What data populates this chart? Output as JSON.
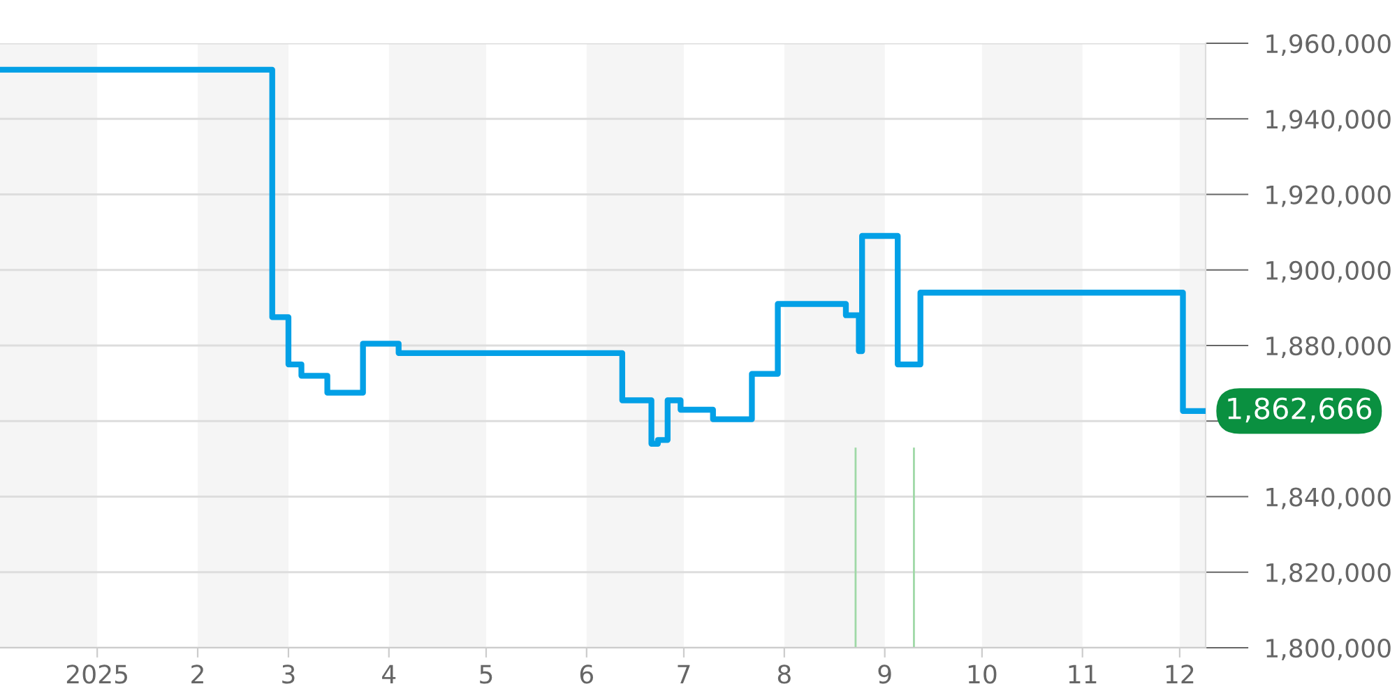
{
  "chart_data": {
    "type": "step",
    "series": [
      {
        "color": "#03a0e6",
        "x": [
          "2024-12-02",
          "2025-02-24",
          "2025-03-01",
          "2025-03-05",
          "2025-03-13",
          "2025-03-24",
          "2025-04-04",
          "2025-06-12",
          "2025-06-21",
          "2025-06-23",
          "2025-06-26",
          "2025-06-30",
          "2025-07-10",
          "2025-07-22",
          "2025-07-30",
          "2025-08-20",
          "2025-08-24",
          "2025-08-25",
          "2025-09-05",
          "2025-09-12",
          "2025-12-02",
          "2025-12-09"
        ],
        "values": [
          1953000,
          1887500,
          1875000,
          1872000,
          1867500,
          1880500,
          1878000,
          1865500,
          1854000,
          1855000,
          1865500,
          1863000,
          1860500,
          1872500,
          1891000,
          1888000,
          1878500,
          1909000,
          1875000,
          1894000,
          1862666,
          1862666
        ]
      },
      {
        "type": "bar",
        "color": "#9fd8a6",
        "x": [
          "2025-08-23",
          "2025-09-10"
        ],
        "base": [
          1800000,
          1800000
        ],
        "values": [
          53000,
          53000
        ]
      }
    ],
    "xlim": [
      "2024-12-02",
      "2025-12-09"
    ],
    "xticks": [
      {
        "value": "2025-01-01",
        "label": "2025"
      },
      {
        "value": "2025-02-01",
        "label": "2"
      },
      {
        "value": "2025-03-01",
        "label": "3"
      },
      {
        "value": "2025-04-01",
        "label": "4"
      },
      {
        "value": "2025-05-01",
        "label": "5"
      },
      {
        "value": "2025-06-01",
        "label": "6"
      },
      {
        "value": "2025-07-01",
        "label": "7"
      },
      {
        "value": "2025-08-01",
        "label": "8"
      },
      {
        "value": "2025-09-01",
        "label": "9"
      },
      {
        "value": "2025-10-01",
        "label": "10"
      },
      {
        "value": "2025-11-01",
        "label": "11"
      },
      {
        "value": "2025-12-01",
        "label": "12"
      }
    ],
    "ylim": [
      1800000,
      1960000
    ],
    "yticks": [
      {
        "value": 1800000,
        "label": "1,800,000"
      },
      {
        "value": 1820000,
        "label": "1,820,000"
      },
      {
        "value": 1840000,
        "label": "1,840,000"
      },
      {
        "value": 1860000,
        "label": null
      },
      {
        "value": 1880000,
        "label": "1,880,000"
      },
      {
        "value": 1900000,
        "label": "1,900,000"
      },
      {
        "value": 1920000,
        "label": "1,920,000"
      },
      {
        "value": 1940000,
        "label": "1,940,000"
      },
      {
        "value": 1960000,
        "label": "1,960,000"
      }
    ],
    "grid": "y",
    "bands": [
      {
        "axis": "x",
        "from": "2024-12-02",
        "to": "2025-01-01",
        "color": "#f5f5f5"
      },
      {
        "axis": "x",
        "from": "2025-02-01",
        "to": "2025-03-01",
        "color": "#f5f5f5"
      },
      {
        "axis": "x",
        "from": "2025-04-01",
        "to": "2025-05-01",
        "color": "#f5f5f5"
      },
      {
        "axis": "x",
        "from": "2025-06-01",
        "to": "2025-07-01",
        "color": "#f5f5f5"
      },
      {
        "axis": "x",
        "from": "2025-08-01",
        "to": "2025-09-01",
        "color": "#f5f5f5"
      },
      {
        "axis": "x",
        "from": "2025-10-01",
        "to": "2025-11-01",
        "color": "#f5f5f5"
      },
      {
        "axis": "x",
        "from": "2025-12-01",
        "to": "2025-12-09",
        "color": "#f5f5f5"
      }
    ],
    "annotations": [
      {
        "text": "1,862,666",
        "x": "2025-12-09",
        "y": 1862666
      }
    ]
  }
}
